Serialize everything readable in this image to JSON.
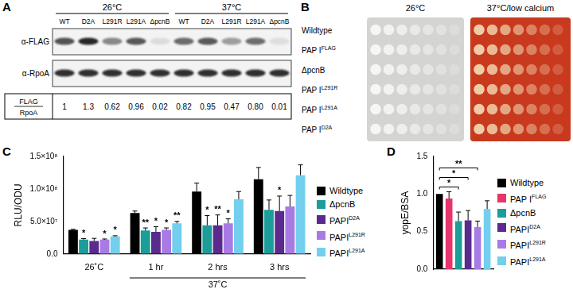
{
  "panel_labels": [
    "A",
    "B",
    "C",
    "D"
  ],
  "panel_a": {
    "temperatures": [
      "26°C",
      "37°C"
    ],
    "lanes": [
      "WT",
      "D2A",
      "L291R",
      "L291A",
      "ΔpcnB"
    ],
    "rows": [
      "α-FLAG",
      "α-RpoA"
    ],
    "ratio_label": {
      "numerator": "FLAG",
      "denominator": "RpoA"
    },
    "ratios": [
      "1",
      "1.3",
      "0.62",
      "0.96",
      "0.02",
      "0.82",
      "0.95",
      "0.47",
      "0.80",
      "0.01"
    ]
  },
  "panel_b": {
    "conditions": [
      "26°C",
      "37°C/low calcium"
    ],
    "strains": [
      {
        "text": "Wildtype"
      },
      {
        "text": "PAP I",
        "superscript": "FLAG"
      },
      {
        "text": "ΔpcnB"
      },
      {
        "text": "PAP I",
        "superscript": "L291R"
      },
      {
        "text": "PAP I",
        "superscript": "L291A"
      },
      {
        "text": "PAP I",
        "superscript": "D2A"
      }
    ]
  },
  "chart_data": [
    {
      "type": "bar",
      "ylabel": "RLU/ODU",
      "categories": [
        "26˚C",
        "1 hr",
        "2 hrs",
        "3 hrs"
      ],
      "x_group": {
        "label": "37˚C",
        "categories": [
          "1 hr",
          "2 hrs",
          "3 hrs"
        ]
      },
      "ylim": [
        0,
        150000000
      ],
      "yticks": [
        {
          "value": 0,
          "label": "0.0"
        },
        {
          "value": 50000000,
          "label": "5.0×10⁷"
        },
        {
          "value": 100000000,
          "label": "1.0×10⁸"
        },
        {
          "value": 150000000,
          "label": "1.5×10⁸"
        }
      ],
      "grid": false,
      "legend": "right",
      "series": [
        {
          "name": "Wildtype",
          "color": "#000000",
          "values": [
            37000000,
            63000000,
            96000000,
            115000000
          ],
          "errors": [
            1000000,
            3000000,
            13000000,
            18000000
          ],
          "significance": [
            null,
            null,
            null,
            null
          ]
        },
        {
          "name": "ΔpcnB",
          "color": "#1b9e9a",
          "values": [
            22000000,
            36000000,
            44000000,
            68000000
          ],
          "errors": [
            1500000,
            4000000,
            15000000,
            15000000
          ],
          "significance": [
            "*",
            "**",
            "*",
            null
          ]
        },
        {
          "name": "PAPI",
          "superscript": "D2A",
          "color": "#5a2a8e",
          "values": [
            20000000,
            34000000,
            44000000,
            66000000
          ],
          "errors": [
            4000000,
            8000000,
            16000000,
            23000000
          ],
          "significance": [
            null,
            "*",
            "**",
            "*"
          ]
        },
        {
          "name": "PAPI",
          "superscript": "L291R",
          "color": "#a77be3",
          "values": [
            22000000,
            37000000,
            47000000,
            73000000
          ],
          "errors": [
            1000000,
            3000000,
            7000000,
            17000000
          ],
          "significance": [
            "*",
            "*",
            "*",
            null
          ]
        },
        {
          "name": "PAPI",
          "superscript": "L291A",
          "color": "#72cfee",
          "values": [
            27000000,
            47000000,
            84000000,
            121000000
          ],
          "errors": [
            1000000,
            3000000,
            12000000,
            16000000
          ],
          "significance": [
            "*",
            "**",
            null,
            null
          ]
        }
      ]
    },
    {
      "type": "bar",
      "ylabel": "yopE/BSA",
      "categories": [
        null
      ],
      "ylim": [
        0,
        1.5
      ],
      "yticks": [
        {
          "value": 0,
          "label": "0.0"
        },
        0.5,
        {
          "value": 1,
          "label": "1.0"
        },
        1.5
      ],
      "grid": false,
      "legend": "right",
      "series": [
        {
          "name": "Wildtype",
          "color": "#000000",
          "values": [
            1.0
          ],
          "errors": [
            0
          ]
        },
        {
          "name": "PAP I",
          "superscript": "FLAG",
          "color": "#e8336b",
          "values": [
            0.94
          ],
          "errors": [
            0.09
          ]
        },
        {
          "name": "ΔpcnB",
          "color": "#1b9e9a",
          "values": [
            0.64
          ],
          "errors": [
            0.12
          ]
        },
        {
          "name": "PAPI",
          "superscript": "D2A",
          "color": "#5a2a8e",
          "values": [
            0.65
          ],
          "errors": [
            0.13
          ]
        },
        {
          "name": "PAPI",
          "superscript": "L291R",
          "color": "#a77be3",
          "values": [
            0.56
          ],
          "errors": [
            0.08
          ]
        },
        {
          "name": "PAPI",
          "superscript": "L291A",
          "color": "#72cfee",
          "values": [
            0.8
          ],
          "errors": [
            0.11
          ]
        }
      ],
      "comparisons": [
        {
          "pair": [
            0,
            2
          ],
          "label": "*"
        },
        {
          "pair": [
            0,
            3
          ],
          "label": "*"
        },
        {
          "pair": [
            0,
            4
          ],
          "label": "**"
        }
      ]
    }
  ]
}
